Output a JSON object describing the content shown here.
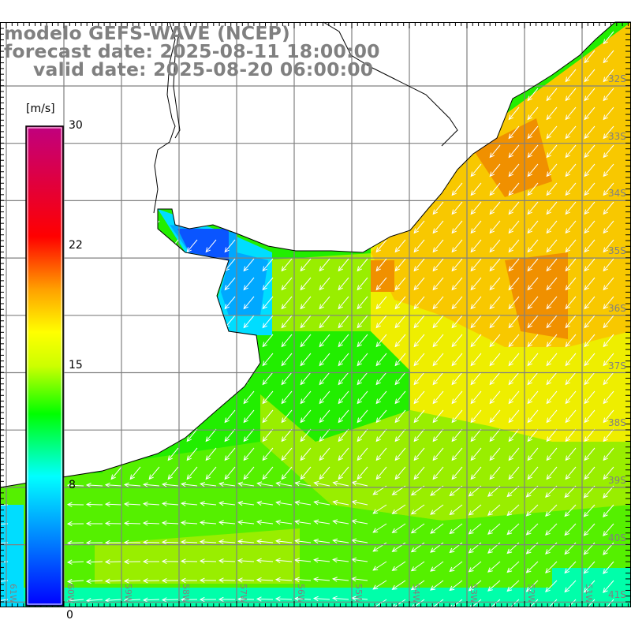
{
  "title": {
    "line1": "modelo GEFS-WAVE (NCEP)",
    "line2": "forecast date: 2025-08-11 18:00:00",
    "line3": "valid date: 2025-08-20 06:00:00"
  },
  "colorbar": {
    "unit": "[m/s]",
    "ticks": [
      "30",
      "22",
      "15",
      "8",
      "0"
    ],
    "range": [
      0,
      30
    ],
    "colors": {
      "min": "#0000ff",
      "c8": "#00ffff",
      "c12": "#00ff00",
      "c15": "#ccff00",
      "c17": "#ffff00",
      "c20": "#ffa000",
      "c23": "#ff0000",
      "max": "#c0007f"
    }
  },
  "latitude_labels": [
    "32S",
    "33S",
    "34S",
    "35S",
    "36S",
    "37S",
    "38S",
    "39S",
    "40S",
    "41S"
  ],
  "longitude_labels": [
    "61W",
    "60W",
    "59W",
    "58W",
    "57W",
    "56W",
    "55W",
    "54W",
    "53W",
    "52W",
    "51W"
  ],
  "field_colors": {
    "base": "#22ee00",
    "orange": "#f09000",
    "yellow_orange": "#f8c800",
    "yellow": "#eeee00",
    "yellow_green": "#99ee00",
    "light_green": "#55f000",
    "blue": "#0a55ff",
    "sky": "#00a8ff",
    "cyan": "#00ddff",
    "aqua": "#00ffaa"
  }
}
